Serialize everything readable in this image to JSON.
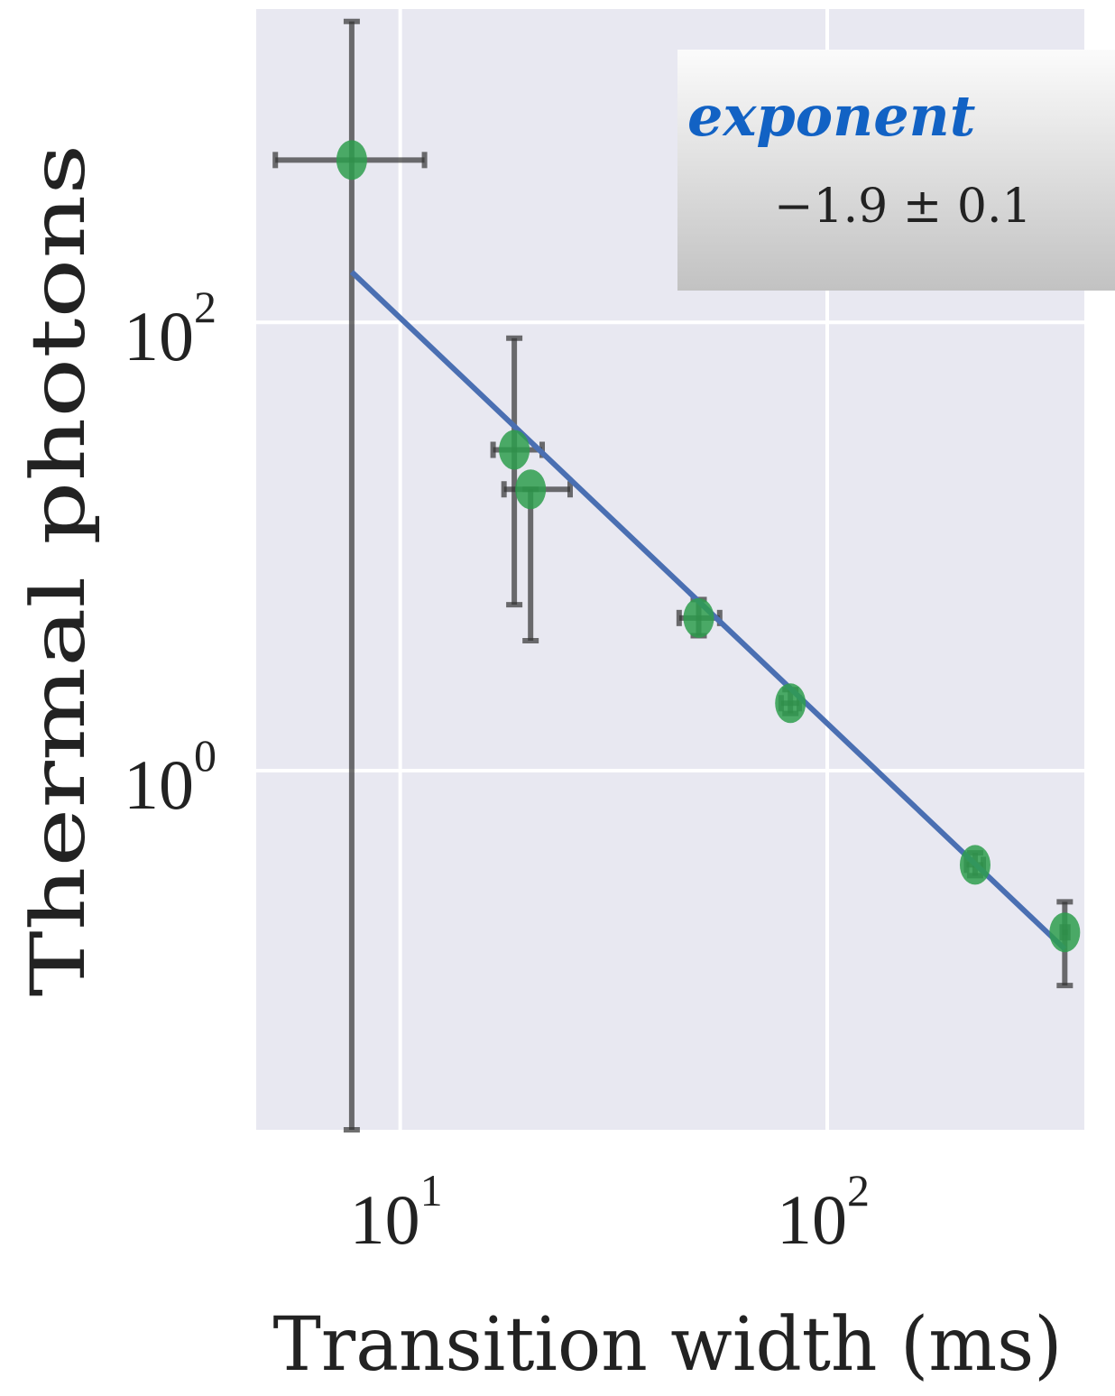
{
  "chart_data": {
    "type": "scatter",
    "xscale": "log",
    "yscale": "log",
    "xlim": [
      4.6,
      400
    ],
    "ylim": [
      0.025,
      2500
    ],
    "xlabel": "Transition width (ms)",
    "ylabel": "Thermal photons",
    "xticks": [
      {
        "value": 10,
        "base": "10",
        "exp": "1"
      },
      {
        "value": 100,
        "base": "10",
        "exp": "2"
      }
    ],
    "yticks": [
      {
        "value": 1,
        "base": "10",
        "exp": "0"
      },
      {
        "value": 100,
        "base": "10",
        "exp": "2"
      }
    ],
    "grid": true,
    "points": [
      {
        "x": 7.7,
        "y": 530,
        "xerr": [
          5.1,
          11.4
        ],
        "yerr": [
          0.025,
          2200
        ]
      },
      {
        "x": 18.5,
        "y": 27,
        "xerr": [
          16.5,
          21.5
        ],
        "yerr": [
          5.5,
          85
        ]
      },
      {
        "x": 20.2,
        "y": 18,
        "xerr": [
          17.5,
          25
        ],
        "yerr": [
          3.8,
          18
        ]
      },
      {
        "x": 50,
        "y": 4.8,
        "xerr": [
          45,
          56
        ],
        "yerr": [
          4.0,
          5.8
        ]
      },
      {
        "x": 82,
        "y": 2.0,
        "xerr": [
          78,
          86
        ],
        "yerr": [
          1.8,
          2.3
        ]
      },
      {
        "x": 222,
        "y": 0.38,
        "xerr": [
          212,
          232
        ],
        "yerr": [
          0.34,
          0.43
        ]
      },
      {
        "x": 360,
        "y": 0.19,
        "xerr": [
          355,
          366
        ],
        "yerr": [
          0.11,
          0.26
        ]
      }
    ],
    "fit": {
      "x": [
        7.7,
        360
      ],
      "y": [
        168,
        0.16
      ]
    },
    "colors": {
      "background": "#e8e8f1",
      "grid": "#ffffff",
      "marker": "#2e9e4d",
      "errorbar": "#333333",
      "fit": "#4a6fb2",
      "annotation_title": "#1262c4"
    }
  },
  "annotation": {
    "title": "exponent",
    "value": "−1.9 ± 0.1"
  }
}
